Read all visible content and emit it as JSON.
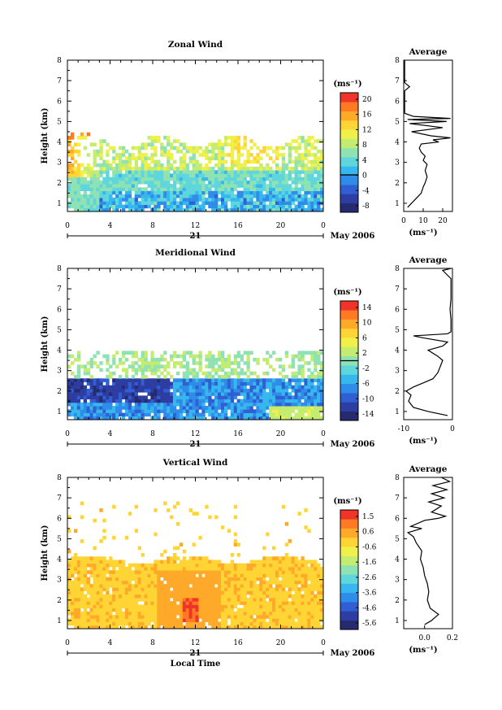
{
  "chart_data": [
    {
      "type": "heatmap",
      "title": "Zonal Wind",
      "xlabel": "",
      "ylabel": "Height (km)",
      "x_ticks": [
        "0",
        "4",
        "8",
        "12",
        "16",
        "20",
        "0"
      ],
      "y_ticks": [
        "1",
        "2",
        "3",
        "4",
        "5",
        "6",
        "7",
        "8"
      ],
      "xlim": [
        0,
        24
      ],
      "ylim": [
        0.6,
        8
      ],
      "day_label": "21",
      "date_label": "May 2006",
      "unit_label": "(ms⁻¹)",
      "colorbar": {
        "ticks": [
          "20",
          "16",
          "12",
          "8",
          "4",
          "0",
          "-4",
          "-8"
        ],
        "min": -10,
        "max": 22,
        "zero_line": 0
      },
      "field": "zonal",
      "avg_profile": {
        "title": "Average",
        "xlabel": "(ms⁻¹)",
        "x_ticks": [
          "0",
          "10",
          "20"
        ],
        "xlim": [
          0,
          25
        ],
        "points": [
          [
            2,
            0.8
          ],
          [
            4,
            1.0
          ],
          [
            6,
            1.2
          ],
          [
            9,
            1.5
          ],
          [
            10,
            1.8
          ],
          [
            11,
            2.0
          ],
          [
            12,
            2.3
          ],
          [
            11,
            2.6
          ],
          [
            12,
            2.9
          ],
          [
            10,
            3.1
          ],
          [
            11,
            3.3
          ],
          [
            9,
            3.5
          ],
          [
            8,
            3.7
          ],
          [
            9,
            3.9
          ],
          [
            18,
            4.0
          ],
          [
            15,
            4.1
          ],
          [
            24,
            4.2
          ],
          [
            14,
            4.3
          ],
          [
            4,
            4.5
          ],
          [
            20,
            4.7
          ],
          [
            3,
            4.9
          ],
          [
            22,
            5.0
          ],
          [
            2,
            5.1
          ],
          [
            24,
            5.15
          ],
          [
            5,
            5.25
          ],
          [
            0.5,
            5.4
          ],
          [
            0.5,
            6.5
          ],
          [
            3,
            6.7
          ],
          [
            0.5,
            6.9
          ],
          [
            0.5,
            8.0
          ]
        ]
      }
    },
    {
      "type": "heatmap",
      "title": "Meridional Wind",
      "xlabel": "",
      "ylabel": "Height (km)",
      "x_ticks": [
        "0",
        "4",
        "8",
        "12",
        "16",
        "20",
        "0"
      ],
      "y_ticks": [
        "1",
        "2",
        "3",
        "4",
        "5",
        "6",
        "7",
        "8"
      ],
      "xlim": [
        0,
        24
      ],
      "ylim": [
        0.6,
        8
      ],
      "day_label": "21",
      "date_label": "May 2006",
      "unit_label": "(ms⁻¹)",
      "colorbar": {
        "ticks": [
          "14",
          "10",
          "6",
          "2",
          "-2",
          "-6",
          "-10",
          "-14"
        ],
        "min": -16,
        "max": 16,
        "zero_line": 0
      },
      "field": "meridional",
      "avg_profile": {
        "title": "Average",
        "xlabel": "(ms⁻¹)",
        "x_ticks": [
          "-10",
          "0"
        ],
        "xlim": [
          -10,
          0
        ],
        "points": [
          [
            -1,
            0.8
          ],
          [
            -5,
            1.0
          ],
          [
            -8,
            1.2
          ],
          [
            -9,
            1.5
          ],
          [
            -8.5,
            1.8
          ],
          [
            -9.5,
            2.0
          ],
          [
            -8,
            2.2
          ],
          [
            -6,
            2.4
          ],
          [
            -4,
            2.6
          ],
          [
            -3,
            2.9
          ],
          [
            -2.5,
            3.2
          ],
          [
            -2,
            3.5
          ],
          [
            -3,
            3.7
          ],
          [
            -5,
            4.0
          ],
          [
            -2,
            4.2
          ],
          [
            -1,
            4.4
          ],
          [
            -6,
            4.6
          ],
          [
            -8,
            4.7
          ],
          [
            -1,
            4.8
          ],
          [
            -0.3,
            4.9
          ],
          [
            -0.3,
            5.5
          ],
          [
            -0.5,
            6.0
          ],
          [
            -0.3,
            6.5
          ],
          [
            -0.3,
            7.5
          ],
          [
            -2,
            7.9
          ],
          [
            -0.3,
            8.0
          ]
        ]
      }
    },
    {
      "type": "heatmap",
      "title": "Vertical Wind",
      "xlabel": "Local Time",
      "ylabel": "Height (km)",
      "x_ticks": [
        "0",
        "4",
        "8",
        "12",
        "16",
        "20",
        "0"
      ],
      "y_ticks": [
        "1",
        "2",
        "3",
        "4",
        "5",
        "6",
        "7",
        "8"
      ],
      "xlim": [
        0,
        24
      ],
      "ylim": [
        0.6,
        8
      ],
      "day_label": "21",
      "date_label": "May 2006",
      "unit_label": "(ms⁻¹)",
      "colorbar": {
        "ticks": [
          "1.5",
          "0.6",
          "-0.6",
          "-1.6",
          "-2.6",
          "-3.6",
          "-4.6",
          "-5.6"
        ],
        "min": -6,
        "max": 2,
        "zero_line": null
      },
      "field": "vertical",
      "avg_profile": {
        "title": "Average",
        "xlabel": "(ms⁻¹)",
        "x_ticks": [
          "0.0",
          "0.2"
        ],
        "xlim": [
          -0.15,
          0.2
        ],
        "points": [
          [
            0.0,
            0.8
          ],
          [
            0.05,
            1.0
          ],
          [
            0.1,
            1.3
          ],
          [
            0.04,
            1.6
          ],
          [
            0.02,
            2.0
          ],
          [
            0.03,
            2.4
          ],
          [
            0.02,
            2.8
          ],
          [
            0.0,
            3.2
          ],
          [
            -0.01,
            3.6
          ],
          [
            -0.03,
            4.0
          ],
          [
            -0.02,
            4.4
          ],
          [
            -0.06,
            4.8
          ],
          [
            -0.08,
            5.1
          ],
          [
            -0.12,
            5.3
          ],
          [
            -0.02,
            5.5
          ],
          [
            -0.1,
            5.6
          ],
          [
            0.0,
            5.9
          ],
          [
            0.1,
            6.0
          ],
          [
            0.15,
            6.1
          ],
          [
            0.05,
            6.3
          ],
          [
            0.12,
            6.6
          ],
          [
            0.03,
            6.8
          ],
          [
            0.14,
            7.0
          ],
          [
            0.05,
            7.2
          ],
          [
            0.16,
            7.4
          ],
          [
            0.06,
            7.6
          ],
          [
            0.18,
            7.8
          ],
          [
            0.12,
            8.0
          ]
        ]
      }
    }
  ]
}
